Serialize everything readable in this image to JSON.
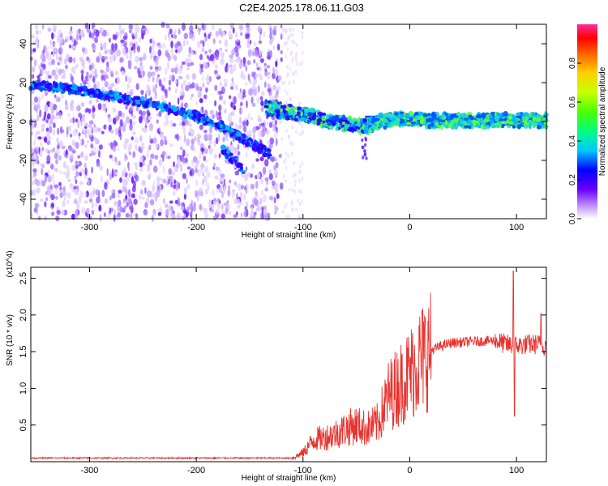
{
  "title": "C2E4.2025.178.06.11.G03",
  "chart_data": [
    {
      "type": "heatmap",
      "xlabel": "Height of straight line (km)",
      "ylabel": "Frequency (Hz)",
      "xlim": [
        -355,
        128
      ],
      "ylim": [
        -50,
        50
      ],
      "xticks": [
        -300,
        -200,
        -100,
        0,
        100
      ],
      "yticks": [
        -40,
        -20,
        0,
        20,
        40
      ],
      "colorbar": {
        "label": "Normalized spectral amplitude",
        "range": [
          0,
          1
        ],
        "ticks": [
          0.0,
          0.2,
          0.4,
          0.6,
          0.8
        ]
      },
      "traces": [
        {
          "points": [
            [
              -355,
              19
            ],
            [
              -320,
              17
            ],
            [
              -290,
              14
            ],
            [
              -260,
              11
            ],
            [
              -230,
              7
            ],
            [
              -200,
              3
            ],
            [
              -175,
              -3
            ],
            [
              -150,
              -11
            ],
            [
              -130,
              -17
            ]
          ]
        },
        {
          "points": [
            [
              -135,
              7
            ],
            [
              -115,
              5
            ],
            [
              -95,
              3
            ],
            [
              -80,
              1
            ],
            [
              -65,
              -1
            ],
            [
              -50,
              -2
            ],
            [
              -40,
              -3
            ],
            [
              -30,
              0
            ],
            [
              -15,
              1
            ],
            [
              0,
              1
            ],
            [
              30,
              0.5
            ],
            [
              60,
              0.5
            ],
            [
              90,
              0.5
            ],
            [
              128,
              0.5
            ]
          ]
        },
        {
          "points": [
            [
              -175,
              -14
            ],
            [
              -165,
              -20
            ],
            [
              -155,
              -25
            ]
          ]
        }
      ],
      "noise_x_end": -120,
      "strong_band_x_start": -42
    },
    {
      "type": "line",
      "xlabel": "Height of straight line (km)",
      "ylabel": "SNR (10 * v/v)",
      "y_multiplier": "(x10^4)",
      "xlim": [
        -355,
        128
      ],
      "ylim": [
        0,
        2.65
      ],
      "xticks": [
        -300,
        -200,
        -100,
        0,
        100
      ],
      "yticks": [
        0.5,
        1.0,
        1.5,
        2.0,
        2.5
      ],
      "color": "#e8322e",
      "envelope": [
        [
          -355,
          0.05
        ],
        [
          -110,
          0.05
        ],
        [
          -100,
          0.12
        ],
        [
          -90,
          0.3
        ],
        [
          -80,
          0.33
        ],
        [
          -70,
          0.38
        ],
        [
          -60,
          0.45
        ],
        [
          -50,
          0.5
        ],
        [
          -40,
          0.45
        ],
        [
          -30,
          0.52
        ],
        [
          -20,
          0.9
        ],
        [
          -10,
          1.05
        ],
        [
          0,
          1.2
        ],
        [
          10,
          1.4
        ],
        [
          20,
          1.52
        ],
        [
          30,
          1.58
        ],
        [
          40,
          1.62
        ],
        [
          60,
          1.64
        ],
        [
          80,
          1.65
        ],
        [
          90,
          1.6
        ],
        [
          100,
          1.58
        ],
        [
          110,
          1.6
        ],
        [
          120,
          1.6
        ],
        [
          128,
          1.58
        ]
      ],
      "peaks": [
        [
          97,
          2.6
        ],
        [
          98,
          0.62
        ],
        [
          123,
          2.02
        ]
      ]
    }
  ]
}
